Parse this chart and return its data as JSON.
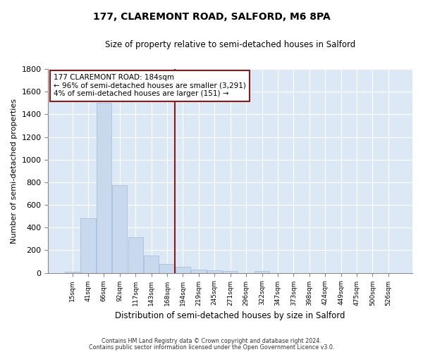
{
  "title": "177, CLAREMONT ROAD, SALFORD, M6 8PA",
  "subtitle": "Size of property relative to semi-detached houses in Salford",
  "xlabel": "Distribution of semi-detached houses by size in Salford",
  "ylabel": "Number of semi-detached properties",
  "categories": [
    "15sqm",
    "41sqm",
    "66sqm",
    "92sqm",
    "117sqm",
    "143sqm",
    "168sqm",
    "194sqm",
    "219sqm",
    "245sqm",
    "271sqm",
    "296sqm",
    "322sqm",
    "347sqm",
    "373sqm",
    "398sqm",
    "424sqm",
    "449sqm",
    "475sqm",
    "500sqm",
    "526sqm"
  ],
  "values": [
    10,
    480,
    1500,
    775,
    315,
    155,
    80,
    55,
    30,
    20,
    15,
    0,
    15,
    0,
    0,
    0,
    0,
    0,
    0,
    0,
    0
  ],
  "bar_color": "#c9d9ed",
  "bar_edge_color": "#a0b8d8",
  "vline_idx": 7,
  "vline_color": "#8b1a1a",
  "annotation_text": "177 CLAREMONT ROAD: 184sqm\n← 96% of semi-detached houses are smaller (3,291)\n4% of semi-detached houses are larger (151) →",
  "annotation_box_color": "#8b1a1a",
  "annotation_fill": "#ffffff",
  "ylim": [
    0,
    1800
  ],
  "yticks": [
    0,
    200,
    400,
    600,
    800,
    1000,
    1200,
    1400,
    1600,
    1800
  ],
  "bg_color": "#dce8f5",
  "grid_color": "#ffffff",
  "footnote1": "Contains HM Land Registry data © Crown copyright and database right 2024.",
  "footnote2": "Contains public sector information licensed under the Open Government Licence v3.0."
}
